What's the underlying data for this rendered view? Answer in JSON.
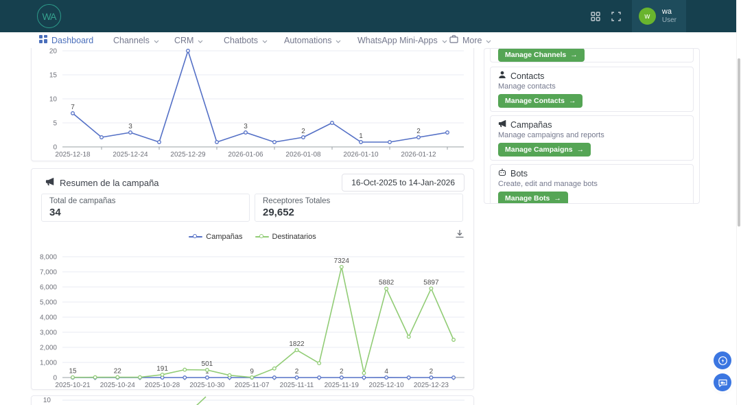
{
  "navbar": {
    "logo_text": "WA",
    "user": {
      "avatar_initial": "w",
      "name": "wa",
      "role": "User"
    }
  },
  "menu": {
    "items": [
      {
        "label": "Dashboard",
        "active": true
      },
      {
        "label": "Channels",
        "caret": true
      },
      {
        "label": "CRM",
        "caret": true
      },
      {
        "label": "Chatbots",
        "caret": true
      },
      {
        "label": "Automations",
        "caret": true
      },
      {
        "label": "WhatsApp Mini-Apps",
        "caret": true
      },
      {
        "label": "More",
        "caret": true
      }
    ]
  },
  "summary": {
    "title": "Resumen de la campaña",
    "date_range": "16-Oct-2025 to 14-Jan-2026",
    "stats": [
      {
        "label": "Total de campañas",
        "value": "34"
      },
      {
        "label": "Receptores Totales",
        "value": "29,652"
      }
    ]
  },
  "chart_data": [
    {
      "type": "line",
      "clipped_top": true,
      "categories": [
        "2025-12-18",
        "",
        "2025-12-24",
        "",
        "2025-12-29",
        "",
        "2026-01-06",
        "",
        "2026-01-08",
        "",
        "2026-01-10",
        "",
        "2026-01-12",
        ""
      ],
      "series": [
        {
          "name": "Campañas",
          "color": "#5470c6",
          "values": [
            7,
            2,
            3,
            1,
            20,
            1,
            3,
            1,
            2,
            5,
            1,
            1,
            2,
            3
          ],
          "point_labels": [
            "7",
            "",
            "3",
            "",
            "",
            "",
            "3",
            "",
            "2",
            "",
            "1",
            "",
            "2",
            ""
          ]
        }
      ],
      "ylim": [
        0,
        20
      ],
      "yticks": [
        0,
        5,
        10,
        15,
        20
      ],
      "ytick_labels": [
        "0",
        "5",
        "10",
        "15",
        "20"
      ],
      "grid": true,
      "legend_position": "none"
    },
    {
      "type": "line",
      "categories": [
        "2025-10-21",
        "",
        "2025-10-24",
        "",
        "2025-10-28",
        "",
        "2025-10-30",
        "",
        "2025-11-07",
        "",
        "2025-11-11",
        "",
        "2025-11-19",
        "",
        "2025-12-10",
        "",
        "2025-12-23",
        ""
      ],
      "series": [
        {
          "name": "Campañas",
          "color": "#5470c6",
          "values": [
            2,
            1,
            1,
            1,
            2,
            1,
            1,
            1,
            1,
            1,
            2,
            1,
            2,
            1,
            4,
            1,
            2,
            1
          ],
          "point_labels": [
            "",
            "",
            "",
            "",
            "",
            "",
            "1",
            "",
            "",
            "",
            "2",
            "",
            "2",
            "",
            "4",
            "",
            "2",
            ""
          ]
        },
        {
          "name": "Destinatarios",
          "color": "#91cc75",
          "values": [
            15,
            20,
            22,
            18,
            191,
            520,
            501,
            150,
            9,
            600,
            1822,
            950,
            7324,
            300,
            5882,
            2700,
            5897,
            2500
          ],
          "point_labels": [
            "15",
            "",
            "22",
            "",
            "191",
            "",
            "501",
            "",
            "9",
            "",
            "1822",
            "",
            "7324",
            "",
            "5882",
            "",
            "5897",
            ""
          ]
        }
      ],
      "ylim": [
        0,
        8000
      ],
      "yticks": [
        0,
        1000,
        2000,
        3000,
        4000,
        5000,
        6000,
        7000,
        8000
      ],
      "ytick_labels": [
        "0",
        "1,000",
        "2,000",
        "3,000",
        "4,000",
        "5,000",
        "6,000",
        "7,000",
        "8,000"
      ],
      "grid": true,
      "legend_position": "top"
    },
    {
      "type": "line",
      "partially_visible": true,
      "visible_ytick_label": "10",
      "series": [
        {
          "name": "Destinatarios",
          "color": "#91cc75"
        }
      ]
    }
  ],
  "sidebar": {
    "partial_card": {
      "button": "Manage Channels"
    },
    "cards": [
      {
        "icon": "person",
        "title": "Contacts",
        "description": "Manage contacts",
        "button": "Manage Contacts"
      },
      {
        "icon": "megaphone",
        "title": "Campañas",
        "description": "Manage campaigns and reports",
        "button": "Manage Campaigns"
      },
      {
        "icon": "bot",
        "title": "Bots",
        "description": "Create, edit and manage bots",
        "button": "Manage Bots"
      }
    ],
    "button_arrow": "→"
  },
  "colors": {
    "navbar_bg": "#16404e",
    "active_link_blue": "#4a6fbb",
    "chart_blue": "#5470c6",
    "chart_green": "#91cc75",
    "button_green": "#55a555",
    "avatar_green": "#69b42e",
    "fab_blue": "#3b76e1",
    "logo_teal": "#2d9b8a"
  }
}
